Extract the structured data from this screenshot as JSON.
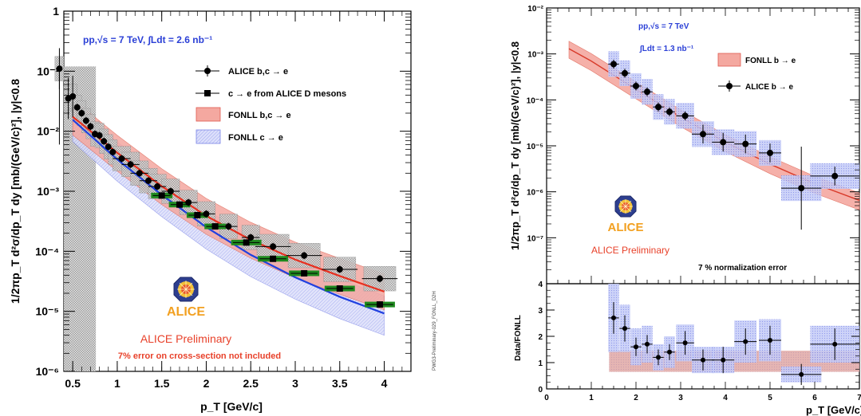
{
  "chart_data": [
    {
      "type": "scatter",
      "yscale": "log",
      "ylim": [
        1e-06,
        1
      ],
      "xlim": [
        0.4,
        4.3
      ],
      "grid": false,
      "xlabel": "p_T [GeV/c]",
      "ylabel": "1/2πp_T d²σ/dp_T dy [mb/(GeV/c)²], |y|<0.8",
      "annotation": "pp,√s = 7 TeV, ∫Ldt = 2.6 nb⁻¹",
      "x_ticks": [
        "0.5",
        "1",
        "1.5",
        "2",
        "2.5",
        "3",
        "3.5",
        "4"
      ],
      "y_ticks": [
        "10⁻⁶",
        "10⁻⁵",
        "10⁻⁴",
        "10⁻³",
        "10⁻²",
        "10⁻¹",
        "1"
      ],
      "legend_position": "top-right",
      "legend": [
        "ALICE b,c → e",
        "c → e from ALICE D mesons",
        "FONLL b,c → e",
        "FONLL c → e"
      ],
      "logo_text": "ALICE",
      "label_preliminary": "ALICE Preliminary",
      "note_red": "7% error on cross-section not included",
      "side_tag": "PWG3-Preliminary-029_FONLL_D2H",
      "series": [
        {
          "name": "ALICE b,c → e",
          "marker": "circle",
          "x": [
            0.35,
            0.45,
            0.5,
            0.55,
            0.6,
            0.65,
            0.7,
            0.75,
            0.8,
            0.85,
            0.9,
            0.95,
            1.05,
            1.15,
            1.25,
            1.35,
            1.45,
            1.6,
            1.8,
            2.0,
            2.25,
            2.5,
            2.75,
            3.1,
            3.5,
            3.95
          ],
          "y": [
            0.11,
            0.035,
            0.038,
            0.025,
            0.02,
            0.015,
            0.012,
            0.009,
            0.0085,
            0.0068,
            0.0055,
            0.0045,
            0.0035,
            0.0028,
            0.002,
            0.0015,
            0.0012,
            0.001,
            0.00065,
            0.00042,
            0.00026,
            0.00017,
            0.00012,
            8.5e-05,
            5e-05,
            3.5e-05
          ]
        },
        {
          "name": "c → e from ALICE D mesons",
          "marker": "square",
          "x": [
            1.5,
            1.7,
            1.9,
            2.1,
            2.45,
            2.75,
            3.1,
            3.5,
            3.95
          ],
          "y": [
            0.00085,
            0.0006,
            0.0004,
            0.00026,
            0.00014,
            7.5e-05,
            4.3e-05,
            2.4e-05,
            1.3e-05
          ]
        },
        {
          "name": "FONLL b,c → e",
          "type": "band",
          "color": "#f4a8a0",
          "x": [
            0.5,
            1.0,
            1.5,
            2.0,
            2.5,
            3.0,
            3.5,
            4.0
          ],
          "y": [
            0.018,
            0.0045,
            0.00125,
            0.0004,
            0.00016,
            7.5e-05,
            4e-05,
            2.2e-05
          ]
        },
        {
          "name": "FONLL c → e",
          "type": "band",
          "color": "#c8ccf4",
          "x": [
            0.5,
            1.0,
            1.5,
            2.0,
            2.5,
            3.0,
            3.5,
            4.0
          ],
          "y": [
            0.016,
            0.0035,
            0.0009,
            0.00026,
            9e-05,
            3.8e-05,
            1.8e-05,
            9.5e-06
          ]
        }
      ]
    },
    {
      "type": "scatter",
      "yscale": "log",
      "ylim": [
        1e-08,
        0.01
      ],
      "xlim": [
        0,
        7
      ],
      "xlabel": "p_T [GeV/c]",
      "ylabel": "1/2πp_T d²σ/dp_T dy [mb/(GeV/c)²], |y|<0.8",
      "annotation_line1": "pp,√s = 7 TeV",
      "annotation_line2": "∫Ldt = 1.3 nb⁻¹",
      "y_ticks": [
        "10⁻⁷",
        "10⁻⁶",
        "10⁻⁵",
        "10⁻⁴",
        "10⁻³",
        "10⁻²"
      ],
      "legend": [
        "FONLL b → e",
        "ALICE b → e"
      ],
      "logo_text": "ALICE",
      "label_preliminary": "ALICE Preliminary",
      "note": "7 % normalization error",
      "series": [
        {
          "name": "ALICE b → e",
          "marker": "circle",
          "x": [
            1.5,
            1.75,
            2.0,
            2.25,
            2.5,
            2.75,
            3.1,
            3.5,
            3.95,
            4.45,
            5.0,
            5.7,
            6.45
          ],
          "y": [
            0.0006,
            0.00038,
            0.0002,
            0.00015,
            7e-05,
            5.5e-05,
            4.5e-05,
            1.8e-05,
            1.2e-05,
            1.1e-05,
            7e-06,
            1.2e-06,
            2.2e-06
          ]
        },
        {
          "name": "FONLL b → e",
          "type": "band",
          "color": "#f4a8a0",
          "x": [
            0.5,
            1,
            2,
            3,
            4,
            5,
            6,
            7
          ],
          "y": [
            0.0013,
            0.0007,
            0.00017,
            4.2e-05,
            1.2e-05,
            4e-06,
            1.5e-06,
            6.5e-07
          ]
        }
      ]
    },
    {
      "type": "scatter",
      "ylim": [
        0,
        4
      ],
      "xlim": [
        0,
        7
      ],
      "xlabel": "p_T [GeV/c]",
      "ylabel": "Data/FONLL",
      "x_ticks": [
        "0",
        "1",
        "2",
        "3",
        "4",
        "5",
        "6",
        "7"
      ],
      "y_ticks": [
        "0",
        "1",
        "2",
        "3",
        "4"
      ],
      "series": [
        {
          "name": "Data/FONLL",
          "marker": "circle",
          "x": [
            1.5,
            1.75,
            2.0,
            2.25,
            2.5,
            2.75,
            3.1,
            3.5,
            3.95,
            4.45,
            5.0,
            5.7,
            6.45
          ],
          "y": [
            2.7,
            2.3,
            1.6,
            1.7,
            1.2,
            1.4,
            1.75,
            1.1,
            1.1,
            1.8,
            1.85,
            0.55,
            1.7
          ]
        }
      ]
    }
  ]
}
